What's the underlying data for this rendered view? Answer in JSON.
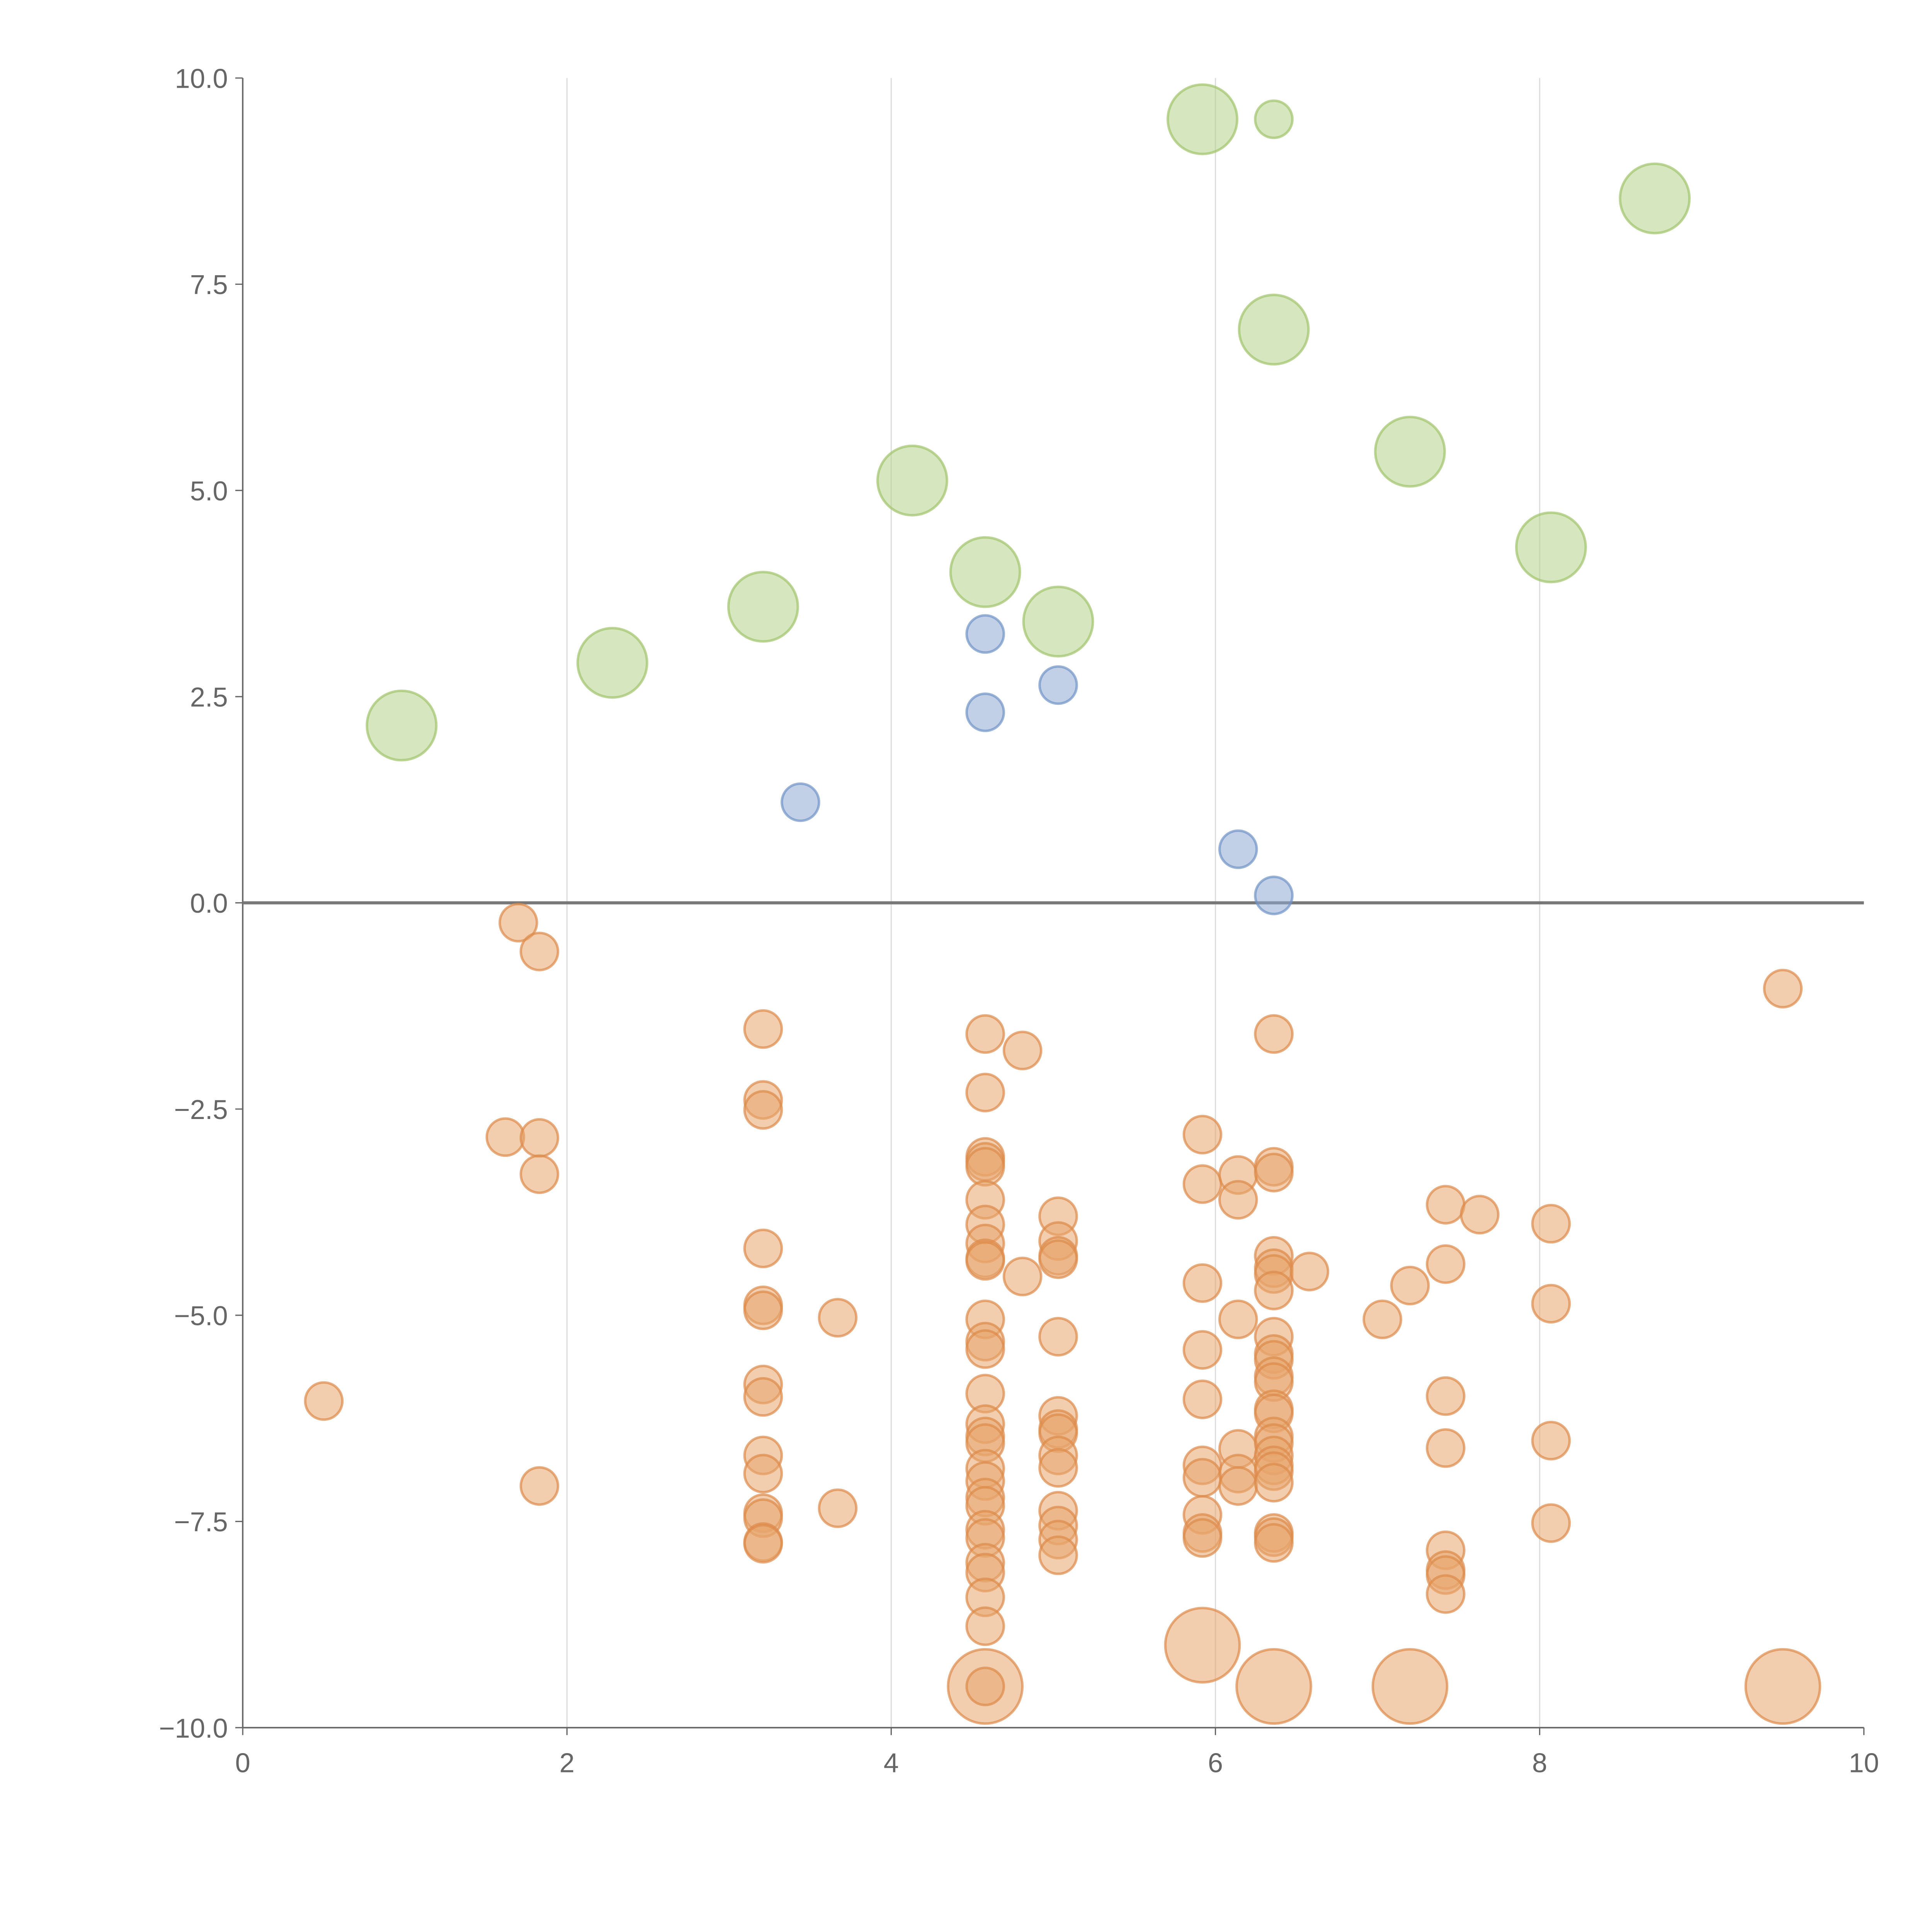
{
  "chart_data": {
    "type": "scatter",
    "title": "",
    "xlabel": "",
    "ylabel": "",
    "xlim": [
      0,
      10
    ],
    "ylim": [
      -10,
      10
    ],
    "grid": "vertical",
    "xticks": [
      "0",
      "2",
      "4",
      "6",
      "8",
      "10"
    ],
    "xtick_values": [
      0,
      2,
      4,
      6,
      8,
      10
    ],
    "yticks": [
      "10.0",
      "7.5",
      "5.0",
      "2.5",
      "0.0",
      "−2.5",
      "−5.0",
      "−7.5",
      "−10.0"
    ],
    "ytick_values": [
      10,
      7.5,
      5,
      2.5,
      0,
      -2.5,
      -5,
      -7.5,
      -10
    ],
    "size_note": "size: 1 = small marker, 2 = large marker",
    "series": [
      {
        "name": "green",
        "color": "#b5d18a",
        "stroke": "#9fc36b",
        "points": [
          [
            0.98,
            2.15,
            2
          ],
          [
            2.28,
            2.91,
            2
          ],
          [
            3.21,
            3.59,
            2
          ],
          [
            4.13,
            5.12,
            2
          ],
          [
            4.58,
            4.01,
            2
          ],
          [
            5.03,
            3.41,
            2
          ],
          [
            5.92,
            9.5,
            2
          ],
          [
            6.36,
            9.5,
            1
          ],
          [
            6.36,
            6.95,
            2
          ],
          [
            7.2,
            5.47,
            2
          ],
          [
            8.07,
            4.31,
            2
          ],
          [
            8.71,
            8.54,
            2
          ]
        ]
      },
      {
        "name": "blue",
        "color": "#8eaad4",
        "stroke": "#6f93c6",
        "points": [
          [
            4.58,
            3.26,
            1
          ],
          [
            4.58,
            2.31,
            1
          ],
          [
            5.03,
            2.64,
            1
          ],
          [
            3.44,
            1.22,
            1
          ],
          [
            6.14,
            0.65,
            1
          ],
          [
            6.36,
            0.09,
            1
          ]
        ]
      },
      {
        "name": "orange",
        "color": "#e8a66e",
        "stroke": "#dd8a4a",
        "points": [
          [
            0.5,
            -6.04,
            1
          ],
          [
            1.62,
            -2.84,
            1
          ],
          [
            1.7,
            -0.24,
            1
          ],
          [
            1.83,
            -0.59,
            1
          ],
          [
            1.83,
            -2.85,
            1
          ],
          [
            1.83,
            -3.29,
            1
          ],
          [
            1.83,
            -7.07,
            1
          ],
          [
            3.21,
            -1.53,
            1
          ],
          [
            3.21,
            -2.39,
            1
          ],
          [
            3.21,
            -2.51,
            1
          ],
          [
            3.21,
            -4.19,
            1
          ],
          [
            3.21,
            -4.88,
            1
          ],
          [
            3.21,
            -4.94,
            1
          ],
          [
            3.21,
            -5.84,
            1
          ],
          [
            3.21,
            -5.99,
            1
          ],
          [
            3.21,
            -6.7,
            1
          ],
          [
            3.21,
            -6.92,
            1
          ],
          [
            3.21,
            -7.4,
            1
          ],
          [
            3.21,
            -7.46,
            1
          ],
          [
            3.21,
            -7.75,
            1
          ],
          [
            3.21,
            -7.77,
            1
          ],
          [
            3.67,
            -5.03,
            1
          ],
          [
            3.67,
            -7.34,
            1
          ],
          [
            4.58,
            -1.59,
            1
          ],
          [
            4.58,
            -2.3,
            1
          ],
          [
            4.58,
            -3.08,
            1
          ],
          [
            4.58,
            -3.14,
            1
          ],
          [
            4.58,
            -3.2,
            1
          ],
          [
            4.58,
            -3.6,
            1
          ],
          [
            4.58,
            -3.9,
            1
          ],
          [
            4.58,
            -4.13,
            1
          ],
          [
            4.58,
            -4.31,
            1
          ],
          [
            4.58,
            -4.34,
            1
          ],
          [
            4.58,
            -5.05,
            1
          ],
          [
            4.58,
            -5.32,
            1
          ],
          [
            4.58,
            -5.41,
            1
          ],
          [
            4.58,
            -5.95,
            1
          ],
          [
            4.58,
            -6.32,
            1
          ],
          [
            4.58,
            -6.47,
            1
          ],
          [
            4.58,
            -6.55,
            1
          ],
          [
            4.58,
            -6.86,
            1
          ],
          [
            4.58,
            -7.01,
            1
          ],
          [
            4.58,
            -7.21,
            1
          ],
          [
            4.58,
            -7.31,
            1
          ],
          [
            4.58,
            -7.6,
            1
          ],
          [
            4.58,
            -7.7,
            1
          ],
          [
            4.58,
            -8.0,
            1
          ],
          [
            4.58,
            -8.12,
            1
          ],
          [
            4.58,
            -8.42,
            1
          ],
          [
            4.58,
            -8.77,
            1
          ],
          [
            4.58,
            -9.5,
            2
          ],
          [
            4.58,
            -9.5,
            1
          ],
          [
            4.81,
            -1.79,
            1
          ],
          [
            4.81,
            -4.53,
            1
          ],
          [
            5.03,
            -3.8,
            1
          ],
          [
            5.03,
            -4.1,
            1
          ],
          [
            5.03,
            -4.28,
            1
          ],
          [
            5.03,
            -4.32,
            1
          ],
          [
            5.03,
            -5.26,
            1
          ],
          [
            5.03,
            -6.22,
            1
          ],
          [
            5.03,
            -6.38,
            1
          ],
          [
            5.03,
            -6.43,
            1
          ],
          [
            5.03,
            -6.7,
            1
          ],
          [
            5.03,
            -6.85,
            1
          ],
          [
            5.03,
            -7.37,
            1
          ],
          [
            5.03,
            -7.55,
            1
          ],
          [
            5.03,
            -7.72,
            1
          ],
          [
            5.03,
            -7.91,
            1
          ],
          [
            5.92,
            -2.81,
            1
          ],
          [
            5.92,
            -3.41,
            1
          ],
          [
            5.92,
            -4.61,
            1
          ],
          [
            5.92,
            -5.42,
            1
          ],
          [
            5.92,
            -6.02,
            1
          ],
          [
            5.92,
            -6.82,
            1
          ],
          [
            5.92,
            -6.97,
            1
          ],
          [
            5.92,
            -7.42,
            1
          ],
          [
            5.92,
            -7.64,
            1
          ],
          [
            5.92,
            -7.7,
            1
          ],
          [
            5.92,
            -9.0,
            2
          ],
          [
            6.14,
            -3.3,
            1
          ],
          [
            6.14,
            -3.6,
            1
          ],
          [
            6.14,
            -5.05,
            1
          ],
          [
            6.14,
            -6.62,
            1
          ],
          [
            6.14,
            -6.92,
            1
          ],
          [
            6.14,
            -7.07,
            1
          ],
          [
            6.36,
            -1.59,
            1
          ],
          [
            6.36,
            -3.2,
            1
          ],
          [
            6.36,
            -3.27,
            1
          ],
          [
            6.36,
            -4.28,
            1
          ],
          [
            6.36,
            -4.43,
            1
          ],
          [
            6.36,
            -4.5,
            1
          ],
          [
            6.36,
            -4.7,
            1
          ],
          [
            6.36,
            -5.26,
            1
          ],
          [
            6.36,
            -5.47,
            1
          ],
          [
            6.36,
            -5.54,
            1
          ],
          [
            6.36,
            -5.74,
            1
          ],
          [
            6.36,
            -5.81,
            1
          ],
          [
            6.36,
            -6.14,
            1
          ],
          [
            6.36,
            -6.19,
            1
          ],
          [
            6.36,
            -6.47,
            1
          ],
          [
            6.36,
            -6.55,
            1
          ],
          [
            6.36,
            -6.7,
            1
          ],
          [
            6.36,
            -6.82,
            1
          ],
          [
            6.36,
            -6.89,
            1
          ],
          [
            6.36,
            -7.03,
            1
          ],
          [
            6.36,
            -7.64,
            1
          ],
          [
            6.36,
            -7.69,
            1
          ],
          [
            6.36,
            -7.76,
            1
          ],
          [
            6.36,
            -9.5,
            2
          ],
          [
            6.58,
            -4.47,
            1
          ],
          [
            7.03,
            -5.05,
            1
          ],
          [
            7.2,
            -4.64,
            1
          ],
          [
            7.2,
            -9.5,
            2
          ],
          [
            7.42,
            -3.66,
            1
          ],
          [
            7.42,
            -4.38,
            1
          ],
          [
            7.42,
            -5.98,
            1
          ],
          [
            7.42,
            -6.61,
            1
          ],
          [
            7.42,
            -7.85,
            1
          ],
          [
            7.42,
            -8.09,
            1
          ],
          [
            7.42,
            -8.15,
            1
          ],
          [
            7.42,
            -8.38,
            1
          ],
          [
            7.63,
            -3.78,
            1
          ],
          [
            8.07,
            -3.89,
            1
          ],
          [
            8.07,
            -4.86,
            1
          ],
          [
            8.07,
            -6.52,
            1
          ],
          [
            8.07,
            -7.52,
            1
          ],
          [
            9.5,
            -1.04,
            1
          ],
          [
            9.5,
            -9.5,
            2
          ]
        ]
      }
    ]
  }
}
